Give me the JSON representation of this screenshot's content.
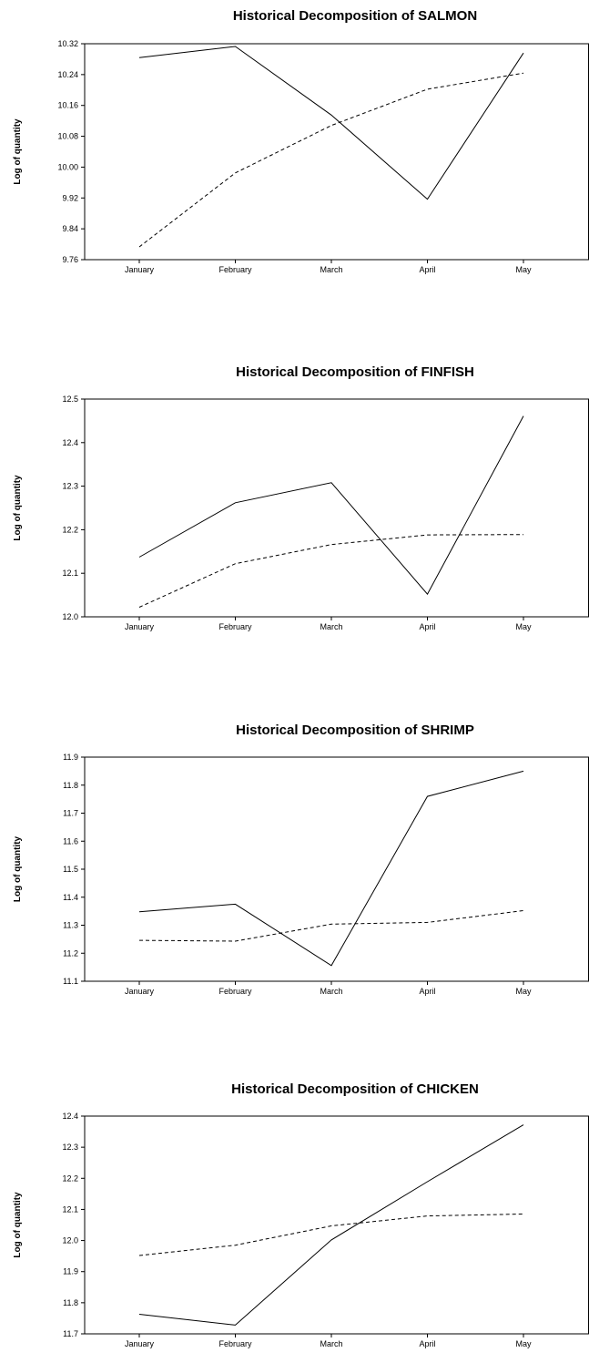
{
  "chart_data": [
    {
      "type": "line",
      "title": "Historical Decomposition of SALMON",
      "xlabel": "",
      "ylabel": "Log of quantity",
      "categories": [
        "January",
        "February",
        "March",
        "April",
        "May"
      ],
      "yticks": [
        "9.76",
        "9.84",
        "9.92",
        "10.00",
        "10.08",
        "10.16",
        "10.24",
        "10.32"
      ],
      "ylim": [
        9.76,
        10.32
      ],
      "grid": false,
      "series": [
        {
          "style": "solid",
          "values": [
            10.284,
            10.313,
            10.135,
            9.917,
            10.296
          ]
        },
        {
          "style": "dashed",
          "values": [
            9.793,
            9.985,
            10.108,
            10.202,
            10.244
          ]
        }
      ]
    },
    {
      "type": "line",
      "title": "Historical Decomposition of FINFISH",
      "xlabel": "",
      "ylabel": "Log of quantity",
      "categories": [
        "January",
        "February",
        "March",
        "April",
        "May"
      ],
      "yticks": [
        "12.0",
        "12.1",
        "12.2",
        "12.3",
        "12.4",
        "12.5"
      ],
      "ylim": [
        12.0,
        12.5
      ],
      "grid": false,
      "series": [
        {
          "style": "solid",
          "values": [
            12.137,
            12.262,
            12.308,
            12.052,
            12.461
          ]
        },
        {
          "style": "dashed",
          "values": [
            12.022,
            12.122,
            12.166,
            12.188,
            12.189
          ]
        }
      ]
    },
    {
      "type": "line",
      "title": "Historical Decomposition of SHRIMP",
      "xlabel": "",
      "ylabel": "Log of quantity",
      "categories": [
        "January",
        "February",
        "March",
        "April",
        "May"
      ],
      "yticks": [
        "11.1",
        "11.2",
        "11.3",
        "11.4",
        "11.5",
        "11.6",
        "11.7",
        "11.8",
        "11.9"
      ],
      "ylim": [
        11.1,
        11.9
      ],
      "grid": false,
      "series": [
        {
          "style": "solid",
          "values": [
            11.348,
            11.375,
            11.156,
            11.76,
            11.85
          ]
        },
        {
          "style": "dashed",
          "values": [
            11.246,
            11.243,
            11.304,
            11.31,
            11.352
          ]
        }
      ]
    },
    {
      "type": "line",
      "title": "Historical Decomposition of CHICKEN",
      "xlabel": "",
      "ylabel": "Log of quantity",
      "categories": [
        "January",
        "February",
        "March",
        "April",
        "May"
      ],
      "yticks": [
        "11.7",
        "11.8",
        "11.9",
        "12.0",
        "12.1",
        "12.2",
        "12.3",
        "12.4"
      ],
      "ylim": [
        11.7,
        12.4
      ],
      "grid": false,
      "series": [
        {
          "style": "solid",
          "values": [
            11.763,
            11.728,
            12.002,
            12.189,
            12.372
          ]
        },
        {
          "style": "dashed",
          "values": [
            11.952,
            11.985,
            12.047,
            12.079,
            12.085
          ]
        }
      ]
    }
  ]
}
